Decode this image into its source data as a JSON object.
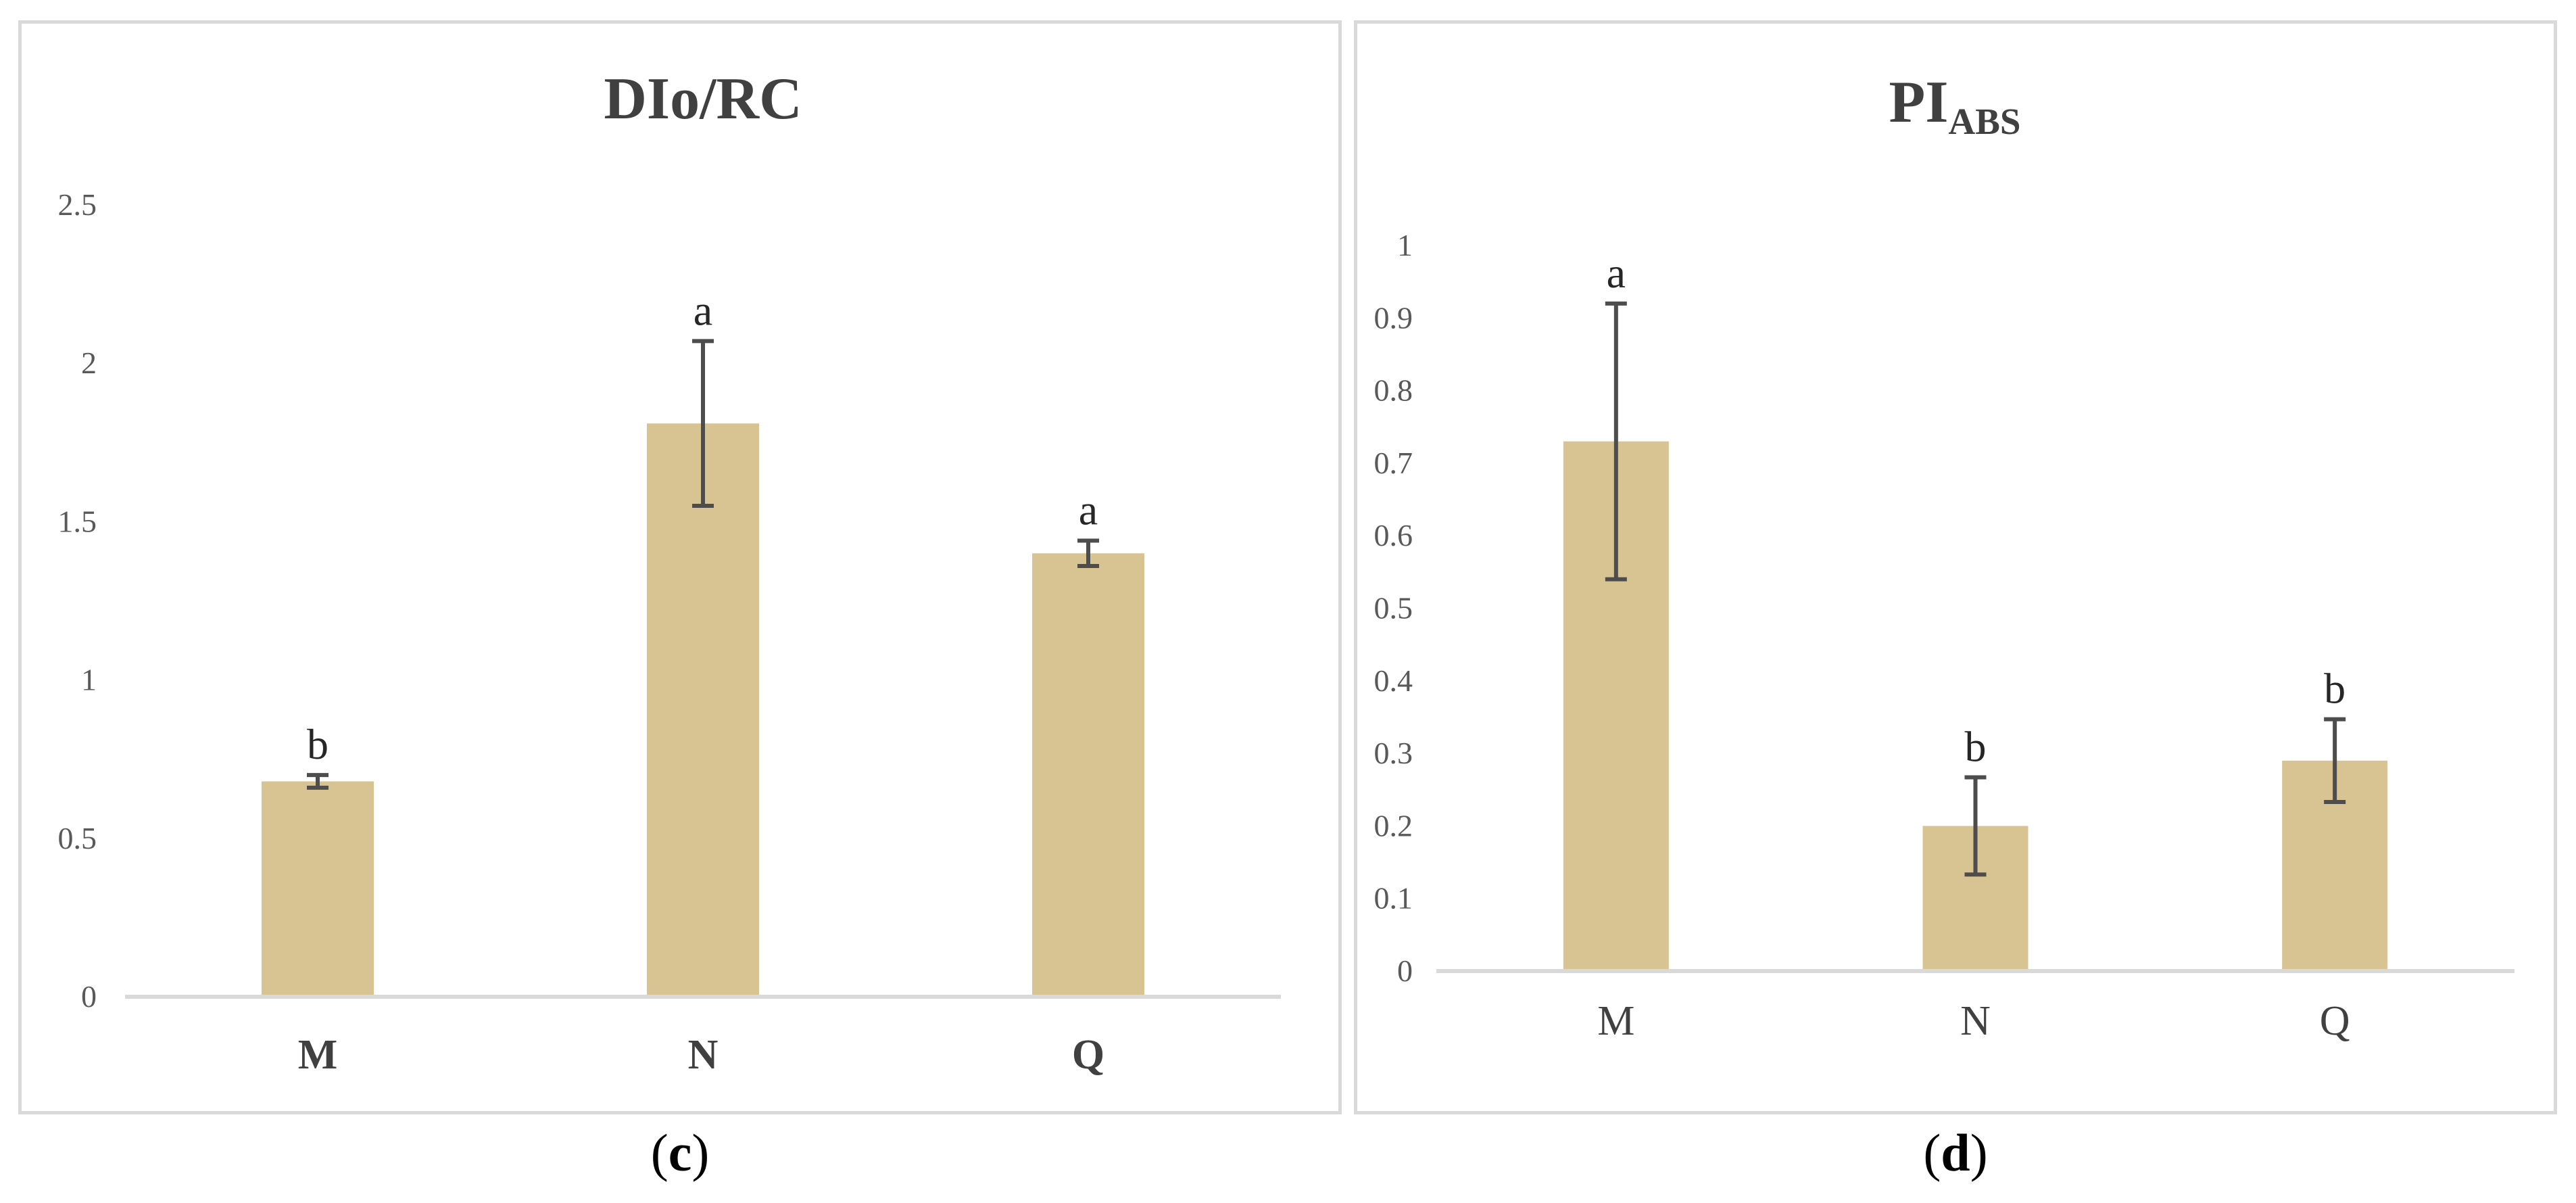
{
  "colors": {
    "bar": "#d8c393",
    "error_bar": "#4d4d4d",
    "axis": "#d9d9d9",
    "text": "#404040",
    "tick": "#595959"
  },
  "captions": {
    "c": {
      "open": "(",
      "letter": "c",
      "close": ")"
    },
    "d": {
      "open": "(",
      "letter": "d",
      "close": ")"
    }
  },
  "chart_data": [
    {
      "type": "bar",
      "title": "DIo/RC",
      "title_sub": "",
      "categories": [
        "M",
        "N",
        "Q"
      ],
      "category_label_bold": true,
      "values": [
        0.68,
        1.81,
        1.4
      ],
      "errors": [
        0.02,
        0.26,
        0.04
      ],
      "annotations": [
        "b",
        "a",
        "a"
      ],
      "ylim": [
        0,
        2.5
      ],
      "yticks": [
        0,
        0.5,
        1,
        1.5,
        2,
        2.5
      ],
      "ytick_labels": [
        "0",
        "0.5",
        "1",
        "1.5",
        "2",
        "2.5"
      ],
      "grid": false,
      "legend": "none"
    },
    {
      "type": "bar",
      "title": "PI",
      "title_sub": "ABS",
      "categories": [
        "M",
        "N",
        "Q"
      ],
      "category_label_bold": false,
      "values": [
        0.73,
        0.2,
        0.29
      ],
      "errors": [
        0.19,
        0.067,
        0.057
      ],
      "annotations": [
        "a",
        "b",
        "b"
      ],
      "ylim": [
        0,
        1
      ],
      "yticks": [
        0,
        0.1,
        0.2,
        0.3,
        0.4,
        0.5,
        0.6,
        0.7,
        0.8,
        0.9,
        1
      ],
      "ytick_labels": [
        "0",
        "0.1",
        "0.2",
        "0.3",
        "0.4",
        "0.5",
        "0.6",
        "0.7",
        "0.8",
        "0.9",
        "1"
      ],
      "grid": false,
      "legend": "none"
    }
  ]
}
